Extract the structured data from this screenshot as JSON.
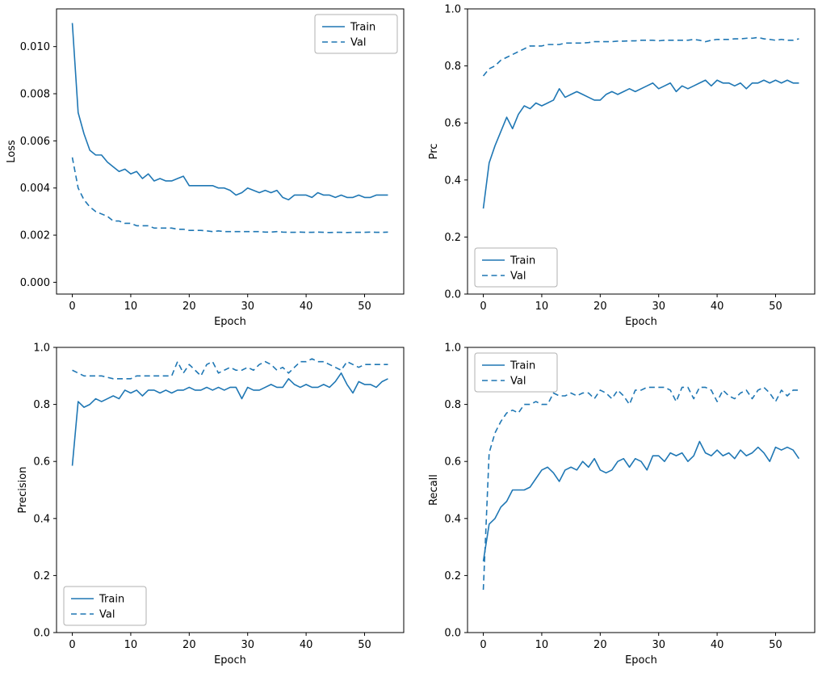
{
  "figure": {
    "background": "#ffffff",
    "accent": "#1f77b4",
    "legend_border": "#b0b0b0"
  },
  "chart_data": [
    {
      "type": "line",
      "name": "loss",
      "xlabel": "Epoch",
      "ylabel": "Loss",
      "xlim": [
        -2.7,
        56.7
      ],
      "ylim": [
        -0.0005,
        0.0116
      ],
      "xticks": [
        0,
        10,
        20,
        30,
        40,
        50
      ],
      "yticks": [
        0.0,
        0.002,
        0.004,
        0.006,
        0.008,
        0.01
      ],
      "ytick_decimals": 3,
      "ylabel_offset": 52,
      "grid": false,
      "legend_position": "top-right",
      "series": [
        {
          "name": "Train",
          "style": "solid",
          "values": [
            0.011,
            0.0072,
            0.0063,
            0.0056,
            0.0054,
            0.0054,
            0.0051,
            0.0049,
            0.0047,
            0.0048,
            0.0046,
            0.0047,
            0.0044,
            0.0046,
            0.0043,
            0.0044,
            0.0043,
            0.0043,
            0.0044,
            0.0045,
            0.0041,
            0.0041,
            0.0041,
            0.0041,
            0.0041,
            0.004,
            0.004,
            0.0039,
            0.0037,
            0.0038,
            0.004,
            0.0039,
            0.0038,
            0.0039,
            0.0038,
            0.0039,
            0.0036,
            0.0035,
            0.0037,
            0.0037,
            0.0037,
            0.0036,
            0.0038,
            0.0037,
            0.0037,
            0.0036,
            0.0037,
            0.0036,
            0.0036,
            0.0037,
            0.0036,
            0.0036,
            0.0037,
            0.0037,
            0.0037
          ]
        },
        {
          "name": "Val",
          "style": "dashed",
          "values": [
            0.0053,
            0.004,
            0.0035,
            0.0032,
            0.003,
            0.0029,
            0.0028,
            0.0026,
            0.0026,
            0.0025,
            0.0025,
            0.0024,
            0.0024,
            0.0024,
            0.0023,
            0.0023,
            0.0023,
            0.0023,
            0.00225,
            0.00225,
            0.0022,
            0.0022,
            0.0022,
            0.00218,
            0.00215,
            0.00218,
            0.00215,
            0.00215,
            0.00215,
            0.00215,
            0.00215,
            0.00215,
            0.00215,
            0.00213,
            0.00213,
            0.00215,
            0.00213,
            0.00212,
            0.00212,
            0.00213,
            0.00212,
            0.00212,
            0.00213,
            0.00212,
            0.00211,
            0.00212,
            0.00212,
            0.00211,
            0.00212,
            0.00212,
            0.00212,
            0.00213,
            0.00212,
            0.00212,
            0.00213
          ]
        }
      ]
    },
    {
      "type": "line",
      "name": "prc",
      "xlabel": "Epoch",
      "ylabel": "Prc",
      "xlim": [
        -2.7,
        56.7
      ],
      "ylim": [
        0.0,
        1.0
      ],
      "xticks": [
        0,
        10,
        20,
        30,
        40,
        50
      ],
      "yticks": [
        0.0,
        0.2,
        0.4,
        0.6,
        0.8,
        1.0
      ],
      "ytick_decimals": 1,
      "ylabel_offset": 38,
      "grid": false,
      "legend_position": "bottom-left",
      "series": [
        {
          "name": "Train",
          "style": "solid",
          "values": [
            0.3,
            0.46,
            0.52,
            0.57,
            0.62,
            0.58,
            0.63,
            0.66,
            0.65,
            0.67,
            0.66,
            0.67,
            0.68,
            0.72,
            0.69,
            0.7,
            0.71,
            0.7,
            0.69,
            0.68,
            0.68,
            0.7,
            0.71,
            0.7,
            0.71,
            0.72,
            0.71,
            0.72,
            0.73,
            0.74,
            0.72,
            0.73,
            0.74,
            0.71,
            0.73,
            0.72,
            0.73,
            0.74,
            0.75,
            0.73,
            0.75,
            0.74,
            0.74,
            0.73,
            0.74,
            0.72,
            0.74,
            0.74,
            0.75,
            0.74,
            0.75,
            0.74,
            0.75,
            0.74,
            0.74
          ]
        },
        {
          "name": "Val",
          "style": "dashed",
          "values": [
            0.765,
            0.79,
            0.8,
            0.82,
            0.83,
            0.84,
            0.85,
            0.86,
            0.87,
            0.87,
            0.87,
            0.875,
            0.875,
            0.875,
            0.88,
            0.88,
            0.88,
            0.88,
            0.882,
            0.885,
            0.885,
            0.885,
            0.885,
            0.887,
            0.887,
            0.888,
            0.888,
            0.89,
            0.89,
            0.89,
            0.888,
            0.89,
            0.89,
            0.89,
            0.89,
            0.89,
            0.893,
            0.89,
            0.885,
            0.89,
            0.893,
            0.893,
            0.893,
            0.895,
            0.895,
            0.897,
            0.897,
            0.9,
            0.895,
            0.893,
            0.89,
            0.893,
            0.89,
            0.89,
            0.895
          ]
        }
      ]
    },
    {
      "type": "line",
      "name": "precision",
      "xlabel": "Epoch",
      "ylabel": "Precision",
      "xlim": [
        -2.7,
        56.7
      ],
      "ylim": [
        0.0,
        1.0
      ],
      "xticks": [
        0,
        10,
        20,
        30,
        40,
        50
      ],
      "yticks": [
        0.0,
        0.2,
        0.4,
        0.6,
        0.8,
        1.0
      ],
      "ytick_decimals": 1,
      "ylabel_offset": 38,
      "grid": false,
      "legend_position": "bottom-left",
      "series": [
        {
          "name": "Train",
          "style": "solid",
          "values": [
            0.585,
            0.81,
            0.79,
            0.8,
            0.82,
            0.81,
            0.82,
            0.83,
            0.82,
            0.85,
            0.84,
            0.85,
            0.83,
            0.85,
            0.85,
            0.84,
            0.85,
            0.84,
            0.85,
            0.85,
            0.86,
            0.85,
            0.85,
            0.86,
            0.85,
            0.86,
            0.85,
            0.86,
            0.86,
            0.82,
            0.86,
            0.85,
            0.85,
            0.86,
            0.87,
            0.86,
            0.86,
            0.89,
            0.87,
            0.86,
            0.87,
            0.86,
            0.86,
            0.87,
            0.86,
            0.88,
            0.91,
            0.87,
            0.84,
            0.88,
            0.87,
            0.87,
            0.86,
            0.88,
            0.89
          ]
        },
        {
          "name": "Val",
          "style": "dashed",
          "values": [
            0.92,
            0.91,
            0.9,
            0.9,
            0.9,
            0.9,
            0.895,
            0.89,
            0.89,
            0.89,
            0.89,
            0.9,
            0.9,
            0.9,
            0.9,
            0.9,
            0.9,
            0.9,
            0.95,
            0.91,
            0.94,
            0.92,
            0.9,
            0.94,
            0.95,
            0.91,
            0.92,
            0.93,
            0.92,
            0.92,
            0.93,
            0.92,
            0.94,
            0.95,
            0.94,
            0.92,
            0.93,
            0.91,
            0.93,
            0.95,
            0.95,
            0.96,
            0.95,
            0.95,
            0.94,
            0.93,
            0.92,
            0.95,
            0.94,
            0.93,
            0.94,
            0.94,
            0.94,
            0.94,
            0.94
          ]
        }
      ]
    },
    {
      "type": "line",
      "name": "recall",
      "xlabel": "Epoch",
      "ylabel": "Recall",
      "xlim": [
        -2.7,
        56.7
      ],
      "ylim": [
        0.0,
        1.0
      ],
      "xticks": [
        0,
        10,
        20,
        30,
        40,
        50
      ],
      "yticks": [
        0.0,
        0.2,
        0.4,
        0.6,
        0.8,
        1.0
      ],
      "ytick_decimals": 1,
      "ylabel_offset": 38,
      "grid": false,
      "legend_position": "top-left",
      "series": [
        {
          "name": "Train",
          "style": "solid",
          "values": [
            0.25,
            0.38,
            0.4,
            0.44,
            0.46,
            0.5,
            0.5,
            0.5,
            0.51,
            0.54,
            0.57,
            0.58,
            0.56,
            0.53,
            0.57,
            0.58,
            0.57,
            0.6,
            0.58,
            0.61,
            0.57,
            0.56,
            0.57,
            0.6,
            0.61,
            0.58,
            0.61,
            0.6,
            0.57,
            0.62,
            0.62,
            0.6,
            0.63,
            0.62,
            0.63,
            0.6,
            0.62,
            0.67,
            0.63,
            0.62,
            0.64,
            0.62,
            0.63,
            0.61,
            0.64,
            0.62,
            0.63,
            0.65,
            0.63,
            0.6,
            0.65,
            0.64,
            0.65,
            0.64,
            0.61
          ]
        },
        {
          "name": "Val",
          "style": "dashed",
          "values": [
            0.15,
            0.63,
            0.7,
            0.74,
            0.77,
            0.78,
            0.77,
            0.8,
            0.8,
            0.81,
            0.8,
            0.8,
            0.84,
            0.83,
            0.83,
            0.84,
            0.83,
            0.84,
            0.84,
            0.82,
            0.85,
            0.84,
            0.82,
            0.85,
            0.83,
            0.8,
            0.85,
            0.85,
            0.86,
            0.86,
            0.86,
            0.86,
            0.85,
            0.81,
            0.86,
            0.86,
            0.82,
            0.86,
            0.86,
            0.85,
            0.81,
            0.85,
            0.83,
            0.82,
            0.84,
            0.85,
            0.82,
            0.85,
            0.86,
            0.84,
            0.81,
            0.85,
            0.83,
            0.85,
            0.85
          ]
        }
      ]
    }
  ]
}
